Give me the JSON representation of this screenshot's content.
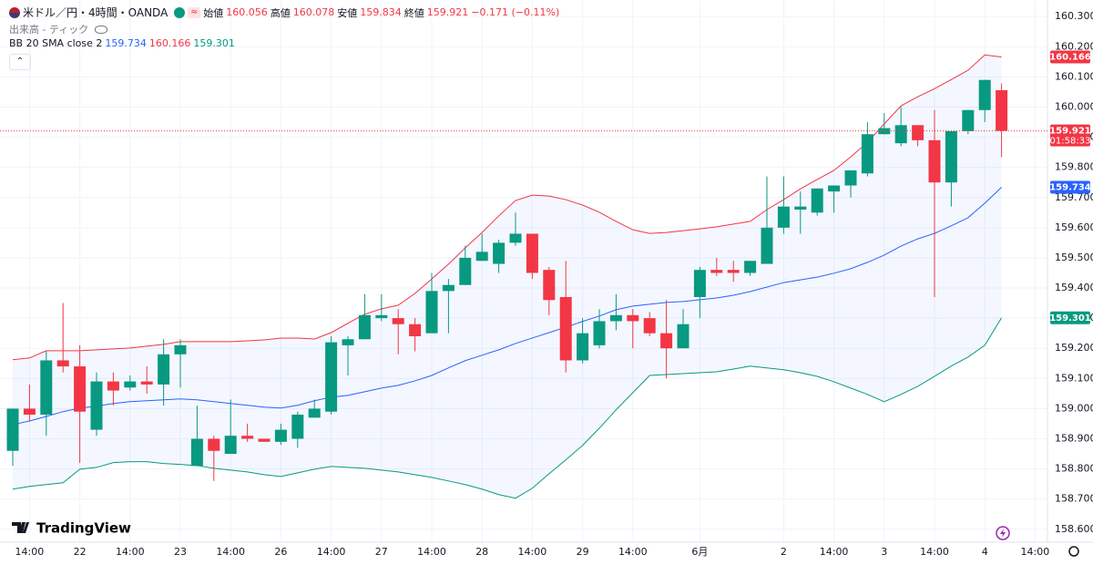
{
  "header": {
    "title": "米ドル／円・4時間・OANDA",
    "open_label": "始値",
    "high_label": "高値",
    "low_label": "安値",
    "close_label": "終値",
    "change": "−0.171 (−0.11%)",
    "volume_label": "出来高 - ティック",
    "bb_label": "BB 20 SMA close 2",
    "watermark": "TradingView",
    "countdown": "01:58:33"
  },
  "chart_data": {
    "type": "candlestick",
    "up_color": "#089981",
    "down_color": "#f23645",
    "grid": true,
    "ylim": [
      158.56,
      160.355
    ],
    "yticks": [
      {
        "value": 158.6,
        "label": "158.600"
      },
      {
        "value": 158.7,
        "label": "158.700"
      },
      {
        "value": 158.8,
        "label": "158.800"
      },
      {
        "value": 158.9,
        "label": "158.900"
      },
      {
        "value": 159.0,
        "label": "159.000"
      },
      {
        "value": 159.1,
        "label": "159.100"
      },
      {
        "value": 159.2,
        "label": "159.200"
      },
      {
        "value": 159.3,
        "label": "159.300"
      },
      {
        "value": 159.4,
        "label": "159.400"
      },
      {
        "value": 159.5,
        "label": "159.500"
      },
      {
        "value": 159.6,
        "label": "159.600"
      },
      {
        "value": 159.7,
        "label": "159.700"
      },
      {
        "value": 159.8,
        "label": "159.800"
      },
      {
        "value": 159.9,
        "label": "159.900"
      },
      {
        "value": 160.0,
        "label": "160.000"
      },
      {
        "value": 160.1,
        "label": "160.100"
      },
      {
        "value": 160.2,
        "label": "160.200"
      },
      {
        "value": 160.3,
        "label": "160.300"
      }
    ],
    "categories": [
      null,
      "14:00",
      null,
      null,
      "22",
      null,
      null,
      "14:00",
      null,
      null,
      "23",
      null,
      null,
      "14:00",
      null,
      null,
      "26",
      null,
      null,
      "14:00",
      null,
      null,
      "27",
      null,
      null,
      "14:00",
      null,
      null,
      "28",
      null,
      null,
      "14:00",
      null,
      null,
      "29",
      null,
      null,
      "14:00",
      null,
      null,
      null,
      "6月",
      null,
      null,
      null,
      null,
      "2",
      null,
      null,
      "14:00",
      null,
      null,
      "3",
      null,
      null,
      "14:00",
      null,
      null,
      "4",
      null,
      null,
      "14:00"
    ],
    "open": [
      158.86,
      159.0,
      158.98,
      159.16,
      159.14,
      158.93,
      159.09,
      159.07,
      159.09,
      159.08,
      159.18,
      158.81,
      158.9,
      158.85,
      158.91,
      158.9,
      158.89,
      158.9,
      158.97,
      158.99,
      159.21,
      159.23,
      159.3,
      159.3,
      159.28,
      159.25,
      159.39,
      159.41,
      159.49,
      159.48,
      159.55,
      159.58,
      159.46,
      159.37,
      159.16,
      159.21,
      159.29,
      159.31,
      159.3,
      159.25,
      159.2,
      159.37,
      159.46,
      159.46,
      159.45,
      159.48,
      159.6,
      159.66,
      159.65,
      159.72,
      159.74,
      159.78,
      159.91,
      159.88,
      159.94,
      159.89,
      159.75,
      159.92,
      159.99,
      160.056,
      null,
      null
    ],
    "high": [
      159.0,
      159.08,
      159.19,
      159.35,
      159.21,
      159.12,
      159.12,
      159.11,
      159.14,
      159.23,
      159.23,
      159.01,
      158.91,
      159.03,
      158.95,
      158.9,
      158.95,
      158.99,
      159.03,
      159.24,
      159.24,
      159.38,
      159.38,
      159.33,
      159.3,
      159.45,
      159.43,
      159.54,
      159.58,
      159.56,
      159.65,
      159.58,
      159.47,
      159.49,
      159.3,
      159.33,
      159.38,
      159.33,
      159.32,
      159.36,
      159.33,
      159.47,
      159.5,
      159.49,
      159.49,
      159.77,
      159.77,
      159.72,
      159.73,
      159.74,
      159.79,
      159.95,
      159.98,
      160.0,
      159.94,
      159.99,
      159.92,
      159.99,
      160.09,
      160.078,
      null,
      null
    ],
    "low": [
      158.81,
      158.96,
      158.91,
      159.12,
      158.82,
      158.91,
      159.01,
      159.06,
      159.05,
      159.01,
      159.07,
      158.81,
      158.76,
      158.85,
      158.89,
      158.89,
      158.88,
      158.87,
      158.97,
      158.98,
      159.11,
      159.23,
      159.29,
      159.18,
      159.19,
      159.25,
      159.25,
      159.41,
      159.49,
      159.45,
      159.54,
      159.43,
      159.31,
      159.12,
      159.15,
      159.2,
      159.26,
      159.2,
      159.24,
      159.1,
      159.2,
      159.3,
      159.44,
      159.42,
      159.44,
      159.48,
      159.58,
      159.58,
      159.64,
      159.65,
      159.7,
      159.77,
      159.91,
      159.87,
      159.87,
      159.37,
      159.67,
      159.91,
      159.95,
      159.834,
      null,
      null
    ],
    "close": [
      159.0,
      158.98,
      159.16,
      159.14,
      158.99,
      159.09,
      159.06,
      159.09,
      159.08,
      159.18,
      159.21,
      158.9,
      158.86,
      158.91,
      158.9,
      158.89,
      158.93,
      158.98,
      159.0,
      159.22,
      159.23,
      159.31,
      159.31,
      159.28,
      159.24,
      159.39,
      159.41,
      159.5,
      159.52,
      159.55,
      159.58,
      159.45,
      159.36,
      159.16,
      159.25,
      159.29,
      159.31,
      159.29,
      159.25,
      159.2,
      159.28,
      159.46,
      159.45,
      159.45,
      159.49,
      159.6,
      159.67,
      159.67,
      159.73,
      159.74,
      159.79,
      159.91,
      159.93,
      159.94,
      159.89,
      159.75,
      159.92,
      159.99,
      160.09,
      159.921,
      null,
      null
    ],
    "bands": [
      {
        "color": "#2962ff",
        "values": [
          158.947,
          158.959,
          158.974,
          158.99,
          159.002,
          159.008,
          159.017,
          159.023,
          159.026,
          159.029,
          159.032,
          159.029,
          159.023,
          159.017,
          159.011,
          159.005,
          159.002,
          159.011,
          159.026,
          159.038,
          159.044,
          159.056,
          159.068,
          159.077,
          159.092,
          159.11,
          159.135,
          159.159,
          159.177,
          159.195,
          159.216,
          159.234,
          159.252,
          159.27,
          159.289,
          159.307,
          159.328,
          159.34,
          159.346,
          159.352,
          159.355,
          159.361,
          159.367,
          159.376,
          159.388,
          159.403,
          159.418,
          159.427,
          159.436,
          159.449,
          159.464,
          159.485,
          159.509,
          159.539,
          159.563,
          159.581,
          159.606,
          159.633,
          159.681,
          159.734,
          null,
          null
        ]
      },
      {
        "color": "#f23645",
        "values": [
          159.162,
          159.168,
          159.192,
          159.192,
          159.192,
          159.195,
          159.198,
          159.201,
          159.207,
          159.213,
          159.222,
          159.222,
          159.222,
          159.222,
          159.225,
          159.228,
          159.234,
          159.234,
          159.231,
          159.252,
          159.283,
          159.313,
          159.331,
          159.343,
          159.382,
          159.43,
          159.479,
          159.533,
          159.584,
          159.639,
          159.69,
          159.708,
          159.705,
          159.693,
          159.675,
          159.651,
          159.621,
          159.593,
          159.581,
          159.584,
          159.59,
          159.596,
          159.603,
          159.612,
          159.621,
          159.66,
          159.693,
          159.729,
          159.76,
          159.79,
          159.835,
          159.883,
          159.944,
          160.004,
          160.034,
          160.061,
          160.091,
          160.122,
          160.173,
          160.166,
          null,
          null
        ]
      },
      {
        "color": "#089981",
        "values": [
          158.733,
          158.742,
          158.748,
          158.754,
          158.799,
          158.805,
          158.821,
          158.824,
          158.824,
          158.818,
          158.815,
          158.811,
          158.802,
          158.796,
          158.79,
          158.781,
          158.775,
          158.787,
          158.799,
          158.808,
          158.805,
          158.802,
          158.796,
          158.79,
          158.781,
          158.772,
          158.76,
          158.748,
          158.733,
          158.715,
          158.703,
          158.736,
          158.784,
          158.83,
          158.878,
          158.935,
          158.996,
          159.053,
          159.11,
          159.113,
          159.116,
          159.119,
          159.122,
          159.131,
          159.141,
          159.135,
          159.129,
          159.119,
          159.107,
          159.089,
          159.068,
          159.047,
          159.023,
          159.047,
          159.074,
          159.107,
          159.141,
          159.171,
          159.21,
          159.301,
          null,
          null
        ]
      }
    ]
  }
}
